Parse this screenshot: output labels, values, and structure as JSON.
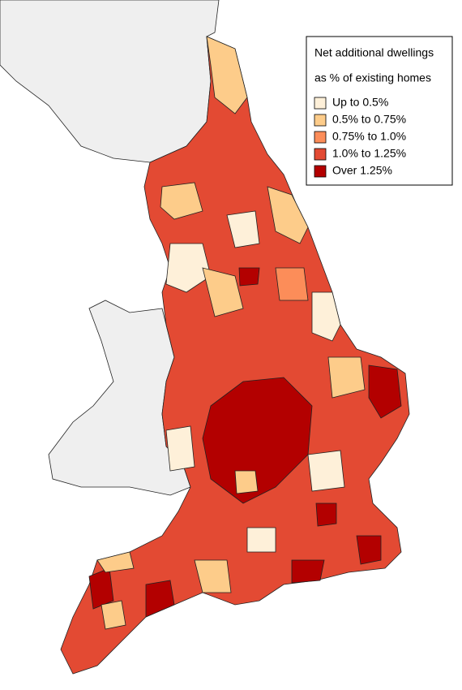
{
  "legend": {
    "title": [
      "Net additional dwellings",
      "as % of existing homes"
    ],
    "items": [
      {
        "label": "Up to 0.5%",
        "color": "#fef0d9"
      },
      {
        "label": "0.5% to 0.75%",
        "color": "#fdcc8a"
      },
      {
        "label": "0.75% to 1.0%",
        "color": "#fc8d59"
      },
      {
        "label": "1.0% to 1.25%",
        "color": "#e34a33"
      },
      {
        "label": "Over 1.25%",
        "color": "#b30000"
      }
    ]
  }
}
